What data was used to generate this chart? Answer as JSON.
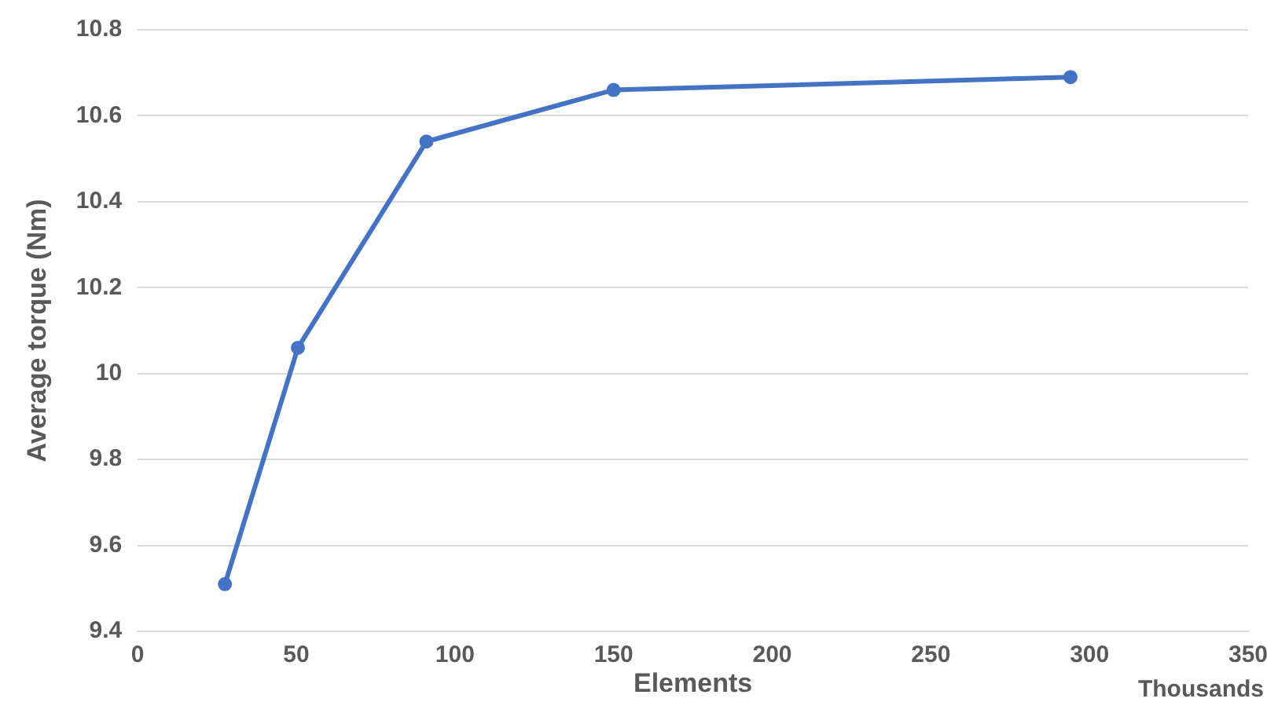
{
  "chart_data": {
    "type": "line",
    "xlabel": "Elements",
    "ylabel": "Average torque (Nm)",
    "annotations": [
      "Thousands"
    ],
    "x": [
      27.5,
      50.5,
      91,
      150,
      294
    ],
    "series": [
      {
        "color": "#4472c4",
        "values": [
          9.51,
          10.06,
          10.54,
          10.66,
          10.69
        ]
      }
    ],
    "xlim": [
      0,
      350
    ],
    "xticks": [
      0,
      50,
      100,
      150,
      200,
      250,
      300,
      350
    ],
    "ylim": [
      9.4,
      10.8
    ],
    "yticks": [
      {
        "value": 9.4,
        "label": "9.4"
      },
      {
        "value": 9.6,
        "label": "9.6"
      },
      {
        "value": 9.8,
        "label": "9.8"
      },
      {
        "value": 10,
        "label": "10"
      },
      {
        "value": 10.2,
        "label": "10.2"
      },
      {
        "value": 10.4,
        "label": "10.4"
      },
      {
        "value": 10.6,
        "label": "10.6"
      },
      {
        "value": 10.8,
        "label": "10.8"
      }
    ],
    "grid": "y",
    "legend": false,
    "marker": "circle",
    "line_style": "solid"
  }
}
